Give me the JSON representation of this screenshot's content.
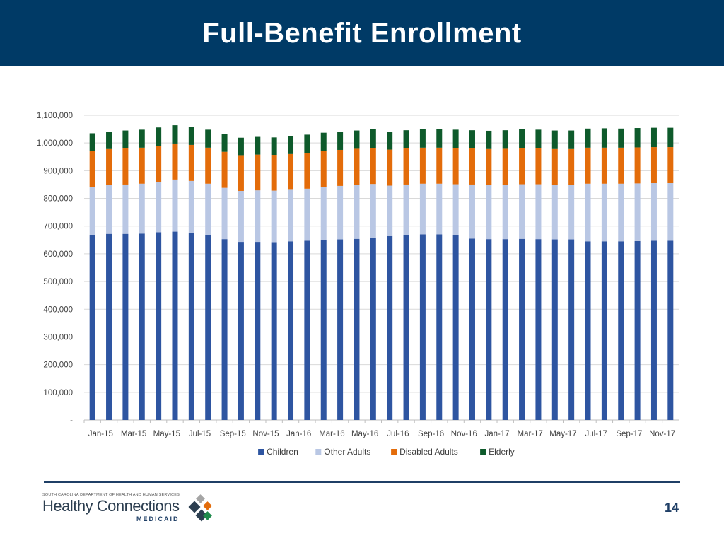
{
  "header": {
    "title": "Full-Benefit Enrollment"
  },
  "chart_data": {
    "type": "bar",
    "stacked": true,
    "title": "",
    "xlabel": "",
    "ylabel": "",
    "ylim": [
      0,
      1100000
    ],
    "yticks": [
      0,
      100000,
      200000,
      300000,
      400000,
      500000,
      600000,
      700000,
      800000,
      900000,
      1000000,
      1100000
    ],
    "ytick_labels": [
      "-",
      "100,000",
      "200,000",
      "300,000",
      "400,000",
      "500,000",
      "600,000",
      "700,000",
      "800,000",
      "900,000",
      "1,000,000",
      "1,100,000"
    ],
    "categories": [
      "Jan-15",
      "Feb-15",
      "Mar-15",
      "Apr-15",
      "May-15",
      "Jun-15",
      "Jul-15",
      "Aug-15",
      "Sep-15",
      "Oct-15",
      "Nov-15",
      "Dec-15",
      "Jan-16",
      "Feb-16",
      "Mar-16",
      "Apr-16",
      "May-16",
      "Jun-16",
      "Jul-16",
      "Aug-16",
      "Sep-16",
      "Oct-16",
      "Nov-16",
      "Dec-16",
      "Jan-17",
      "Feb-17",
      "Mar-17",
      "Apr-17",
      "May-17",
      "Jun-17",
      "Jul-17",
      "Aug-17",
      "Sep-17",
      "Oct-17",
      "Nov-17",
      "Dec-17"
    ],
    "xtick_labels": [
      "Jan-15",
      "Mar-15",
      "May-15",
      "Jul-15",
      "Sep-15",
      "Nov-15",
      "Jan-16",
      "Mar-16",
      "May-16",
      "Jul-16",
      "Sep-16",
      "Nov-16",
      "Jan-17",
      "Mar-17",
      "May-17",
      "Jul-17",
      "Sep-17",
      "Nov-17"
    ],
    "legend_position": "bottom",
    "grid": true,
    "series": [
      {
        "name": "Children",
        "color": "#2e55a1",
        "values": [
          668000,
          672000,
          672000,
          673000,
          678000,
          680000,
          675000,
          667000,
          653000,
          643000,
          643000,
          642000,
          645000,
          647000,
          650000,
          652000,
          654000,
          656000,
          664000,
          667000,
          670000,
          670000,
          668000,
          655000,
          653000,
          653000,
          654000,
          653000,
          652000,
          652000,
          645000,
          645000,
          645000,
          646000,
          647000,
          647000
        ]
      },
      {
        "name": "Other Adults",
        "color": "#b9c7e4",
        "values": [
          172000,
          176000,
          178000,
          180000,
          182000,
          188000,
          188000,
          186000,
          185000,
          184000,
          186000,
          186000,
          186000,
          188000,
          191000,
          193000,
          195000,
          196000,
          182000,
          183000,
          183000,
          183000,
          183000,
          195000,
          195000,
          196000,
          197000,
          198000,
          196000,
          196000,
          208000,
          208000,
          208000,
          208000,
          208000,
          208000
        ]
      },
      {
        "name": "Disabled Adults",
        "color": "#e36c0a",
        "values": [
          130000,
          130000,
          130000,
          130000,
          130000,
          130000,
          130000,
          130000,
          130000,
          129000,
          129000,
          129000,
          129000,
          129000,
          130000,
          130000,
          130000,
          130000,
          130000,
          130000,
          130000,
          130000,
          130000,
          130000,
          130000,
          130000,
          130000,
          130000,
          130000,
          130000,
          130000,
          130000,
          130000,
          130000,
          130000,
          130000
        ]
      },
      {
        "name": "Elderly",
        "color": "#0e5a2b",
        "values": [
          65000,
          63000,
          65000,
          65000,
          66000,
          66000,
          65000,
          65000,
          64000,
          63000,
          64000,
          63000,
          64000,
          66000,
          66000,
          66000,
          66000,
          67000,
          64000,
          66000,
          67000,
          67000,
          67000,
          66000,
          66000,
          67000,
          68000,
          67000,
          67000,
          67000,
          69000,
          70000,
          69000,
          70000,
          70000,
          70000
        ]
      }
    ]
  },
  "footer": {
    "logo_dept": "SOUTH CAROLINA DEPARTMENT OF HEALTH AND HUMAN SERVICES",
    "logo_brand": "Healthy Connections",
    "logo_sub": "MEDICAID",
    "page_number": "14"
  }
}
